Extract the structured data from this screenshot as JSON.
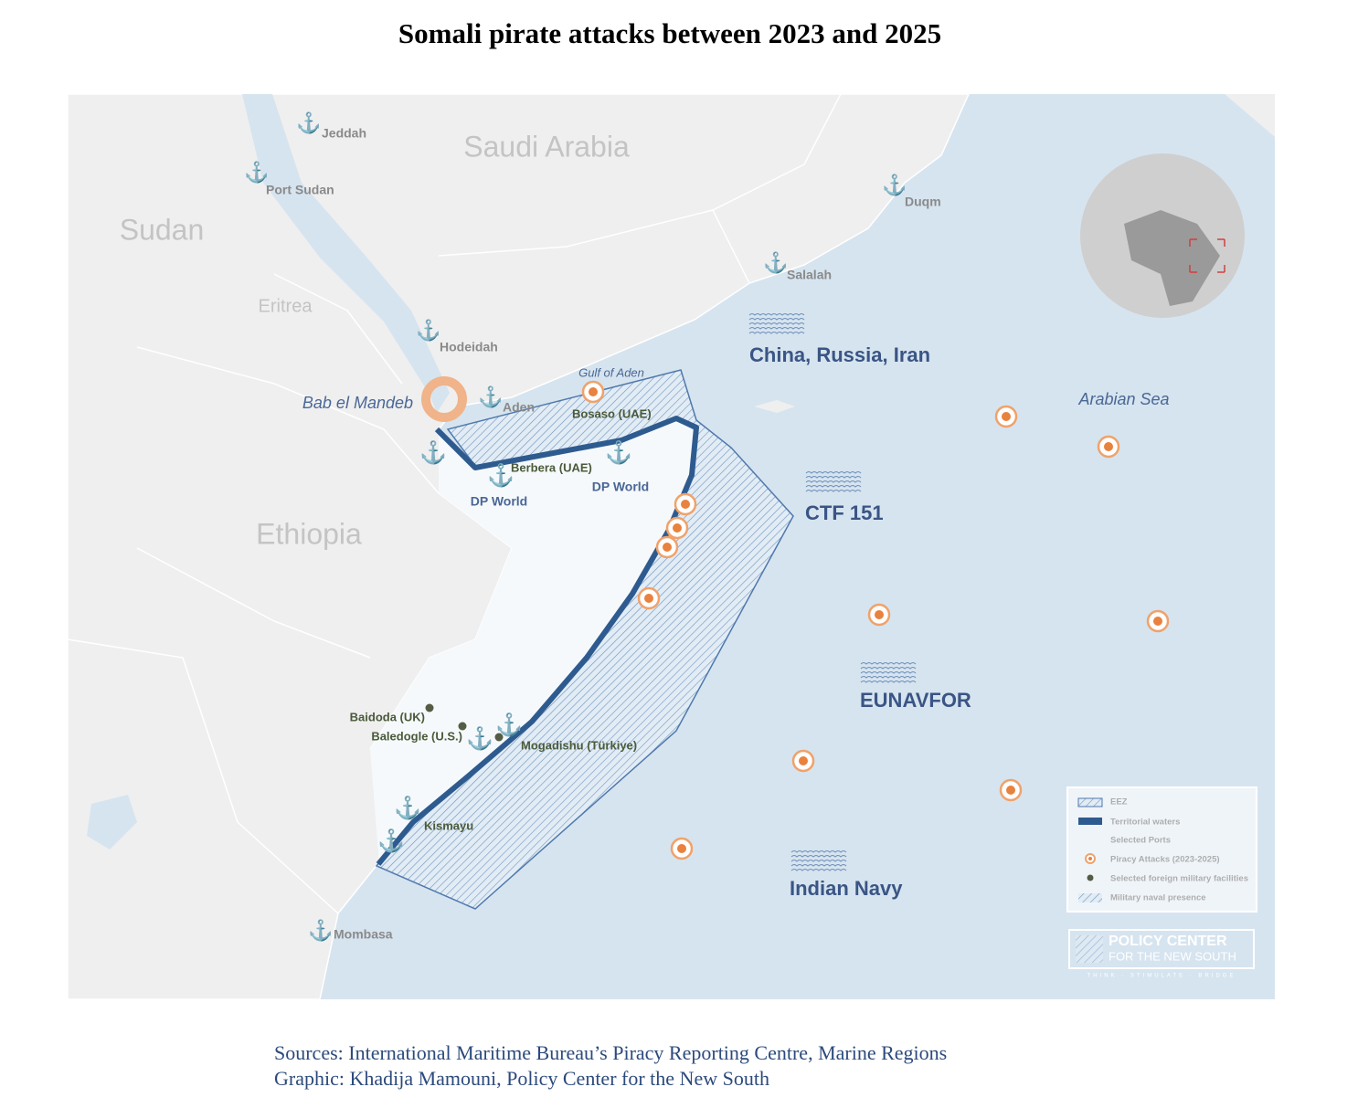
{
  "title": "Somali pirate attacks between 2023 and 2025",
  "map": {
    "countries": [
      "Saudi Arabia",
      "Sudan",
      "Eritrea",
      "Ethiopia"
    ],
    "waters": [
      "Gulf of Aden",
      "Arabian Sea",
      "Bab el Mandeb"
    ],
    "ports": [
      "Jeddah",
      "Port Sudan",
      "Hodeidah",
      "Aden",
      "Duqm",
      "Salalah",
      "Mombasa",
      "Bosaso (UAE)",
      "Berbera (UAE)",
      "DP World",
      "DP World",
      "Kismayu"
    ],
    "facilities": [
      "Baidoda (UK)",
      "Baledogle (U.S.)",
      "Mogadishu (Türkiye)"
    ],
    "navies": [
      "China, Russia, Iran",
      "CTF 151",
      "EUNAVFOR",
      "Indian Navy"
    ]
  },
  "legend": [
    "EEZ",
    "Territorial waters",
    "Selected Ports",
    "Piracy Attacks (2023-2025)",
    "Selected foreign military facilities",
    "Military naval presence"
  ],
  "logo": {
    "name": "POLICY CENTER",
    "subtitle": "FOR THE NEW SOUTH",
    "tagline": "THINK · STIMULATE · BRIDGE"
  },
  "sources": [
    "Sources: International Maritime Bureau’s Piracy Reporting Centre, Marine Regions",
    "Graphic: Khadija Mamouni, Policy Center for the New South"
  ]
}
